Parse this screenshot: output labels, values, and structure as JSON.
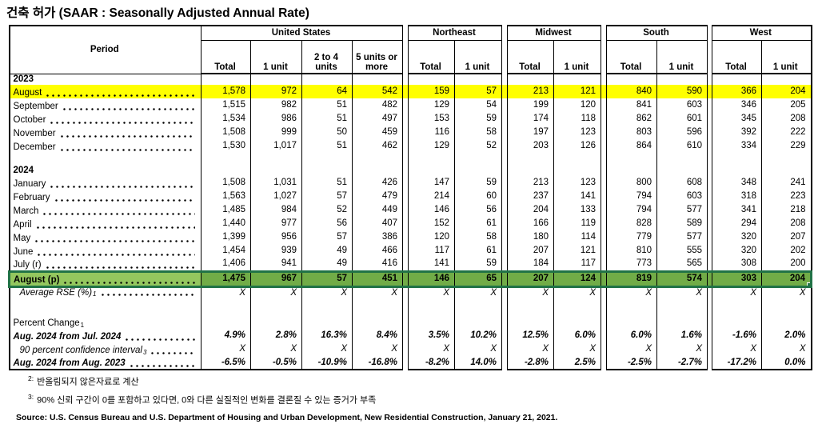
{
  "title": "건축 허가 (SAAR : Seasonally Adjusted Annual Rate)",
  "table": {
    "period_header": "Period",
    "groups": [
      {
        "label": "United States",
        "columns": [
          "Total",
          "1 unit",
          "2 to 4 units",
          "5 units or more"
        ]
      },
      {
        "label": "Northeast",
        "columns": [
          "Total",
          "1 unit"
        ]
      },
      {
        "label": "Midwest",
        "columns": [
          "Total",
          "1 unit"
        ]
      },
      {
        "label": "South",
        "columns": [
          "Total",
          "1 unit"
        ]
      },
      {
        "label": "West",
        "columns": [
          "Total",
          "1 unit"
        ]
      }
    ],
    "rows": [
      {
        "kind": "year",
        "label": "2023"
      },
      {
        "kind": "data",
        "label": "August",
        "highlight": "yellow",
        "values": [
          "1,578",
          "972",
          "64",
          "542",
          "159",
          "57",
          "213",
          "121",
          "840",
          "590",
          "366",
          "204"
        ]
      },
      {
        "kind": "data",
        "label": "September",
        "values": [
          "1,515",
          "982",
          "51",
          "482",
          "129",
          "54",
          "199",
          "120",
          "841",
          "603",
          "346",
          "205"
        ]
      },
      {
        "kind": "data",
        "label": "October",
        "values": [
          "1,534",
          "986",
          "51",
          "497",
          "153",
          "59",
          "174",
          "118",
          "862",
          "601",
          "345",
          "208"
        ]
      },
      {
        "kind": "data",
        "label": "November",
        "values": [
          "1,508",
          "999",
          "50",
          "459",
          "116",
          "58",
          "197",
          "123",
          "803",
          "596",
          "392",
          "222"
        ]
      },
      {
        "kind": "data",
        "label": "December",
        "values": [
          "1,530",
          "1,017",
          "51",
          "462",
          "129",
          "52",
          "203",
          "126",
          "864",
          "610",
          "334",
          "229"
        ]
      },
      {
        "kind": "blank"
      },
      {
        "kind": "year",
        "label": "2024"
      },
      {
        "kind": "data",
        "label": "January",
        "values": [
          "1,508",
          "1,031",
          "51",
          "426",
          "147",
          "59",
          "213",
          "123",
          "800",
          "608",
          "348",
          "241"
        ]
      },
      {
        "kind": "data",
        "label": "February",
        "values": [
          "1,563",
          "1,027",
          "57",
          "479",
          "214",
          "60",
          "237",
          "141",
          "794",
          "603",
          "318",
          "223"
        ]
      },
      {
        "kind": "data",
        "label": "March",
        "values": [
          "1,485",
          "984",
          "52",
          "449",
          "146",
          "56",
          "204",
          "133",
          "794",
          "577",
          "341",
          "218"
        ]
      },
      {
        "kind": "data",
        "label": "April",
        "values": [
          "1,440",
          "977",
          "56",
          "407",
          "152",
          "61",
          "166",
          "119",
          "828",
          "589",
          "294",
          "208"
        ]
      },
      {
        "kind": "data",
        "label": "May",
        "values": [
          "1,399",
          "956",
          "57",
          "386",
          "120",
          "58",
          "180",
          "114",
          "779",
          "577",
          "320",
          "207"
        ]
      },
      {
        "kind": "data",
        "label": "June",
        "values": [
          "1,454",
          "939",
          "49",
          "466",
          "117",
          "61",
          "207",
          "121",
          "810",
          "555",
          "320",
          "202"
        ]
      },
      {
        "kind": "data",
        "label": "July (r)",
        "values": [
          "1,406",
          "941",
          "49",
          "416",
          "141",
          "59",
          "184",
          "117",
          "773",
          "565",
          "308",
          "200"
        ]
      },
      {
        "kind": "data",
        "label": "August (p)",
        "highlight": "green",
        "values": [
          "1,475",
          "967",
          "57",
          "451",
          "146",
          "65",
          "207",
          "124",
          "819",
          "574",
          "303",
          "204"
        ]
      },
      {
        "kind": "data",
        "label": "Average RSE (%)",
        "sup": "1",
        "style": "italic",
        "indent": true,
        "tall": true,
        "values": [
          "X",
          "X",
          "X",
          "X",
          "X",
          "X",
          "X",
          "X",
          "X",
          "X",
          "X",
          "X"
        ]
      },
      {
        "kind": "blank"
      },
      {
        "kind": "label",
        "label": "Percent Change",
        "sup": "1"
      },
      {
        "kind": "data",
        "label": "Aug. 2024 from Jul. 2024",
        "style": "bolditalic",
        "values": [
          "4.9%",
          "2.8%",
          "16.3%",
          "8.4%",
          "3.5%",
          "10.2%",
          "12.5%",
          "6.0%",
          "6.0%",
          "1.6%",
          "-1.6%",
          "2.0%"
        ]
      },
      {
        "kind": "data",
        "label": "90 percent confidence interval",
        "sup": "3",
        "style": "italic",
        "indent": true,
        "values": [
          "X",
          "X",
          "X",
          "X",
          "X",
          "X",
          "X",
          "X",
          "X",
          "X",
          "X",
          "X"
        ]
      },
      {
        "kind": "data",
        "label": "Aug. 2024 from Aug. 2023",
        "style": "bolditalic",
        "values": [
          "-6.5%",
          "-0.5%",
          "-10.9%",
          "-16.8%",
          "-8.2%",
          "14.0%",
          "-2.8%",
          "2.5%",
          "-2.5%",
          "-2.7%",
          "-17.2%",
          "0.0%"
        ]
      }
    ]
  },
  "footnotes": [
    {
      "marker": "2:",
      "text": "반올림되지 않은자료로 계산"
    },
    {
      "marker": "3:",
      "text": "90% 신뢰 구간이 0를 포함하고 있다면, 0와 다른 실질적인 변화를 결론질 수 있는 증거가 부족"
    }
  ],
  "source": "Source: U.S. Census Bureau and U.S. Department of Housing and Urban Development, New Residential Construction, January 21, 2021.",
  "colors": {
    "highlight_yellow": "#FFFF00",
    "highlight_green_fill": "#71AC47",
    "highlight_green_label_fill": "#94C75E",
    "highlight_green_border": "#217346"
  }
}
